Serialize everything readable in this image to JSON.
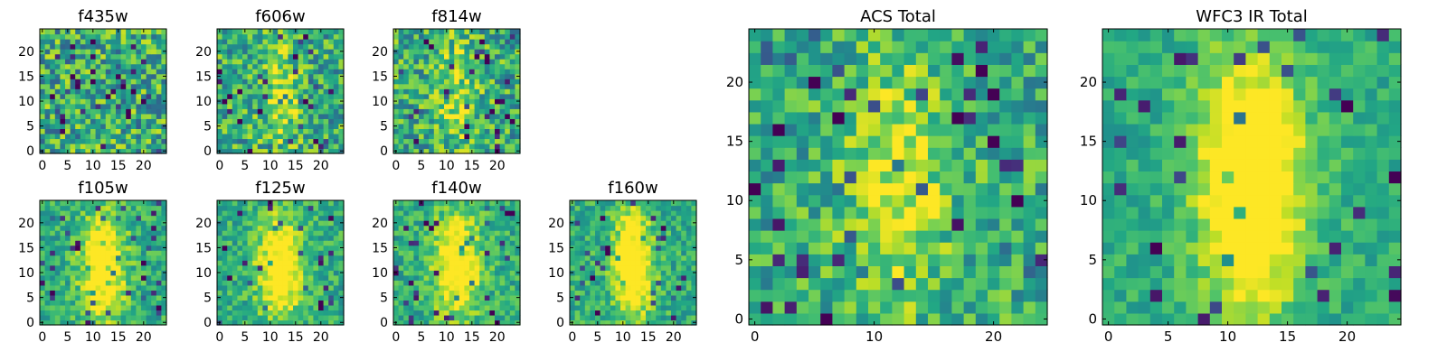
{
  "chart_data": {
    "type": "heatmap",
    "colormap": "viridis",
    "grid_size": 25,
    "panels": [
      {
        "id": "f435w",
        "title": "f435w",
        "kind": "small",
        "xticks": [
          0,
          5,
          10,
          15,
          20
        ],
        "yticks": [
          0,
          5,
          10,
          15,
          20
        ],
        "xlim": [
          -0.5,
          24.5
        ],
        "ylim": [
          -0.5,
          24.5
        ],
        "structure": "noise",
        "noise": 0.6,
        "source_strength": 0.0,
        "source_width": 3.5
      },
      {
        "id": "f606w",
        "title": "f606w",
        "kind": "small",
        "xticks": [
          0,
          5,
          10,
          15,
          20
        ],
        "yticks": [
          0,
          5,
          10,
          15,
          20
        ],
        "xlim": [
          -0.5,
          24.5
        ],
        "ylim": [
          -0.5,
          24.5
        ],
        "structure": "faint-vertical-source",
        "noise": 0.55,
        "source_strength": 0.3,
        "source_width": 2.5
      },
      {
        "id": "f814w",
        "title": "f814w",
        "kind": "small",
        "xticks": [
          0,
          5,
          10,
          15,
          20
        ],
        "yticks": [
          0,
          5,
          10,
          15,
          20
        ],
        "xlim": [
          -0.5,
          24.5
        ],
        "ylim": [
          -0.5,
          24.5
        ],
        "structure": "faint-vertical-source",
        "noise": 0.55,
        "source_strength": 0.3,
        "source_width": 2.8
      },
      {
        "id": "f105w",
        "title": "f105w",
        "kind": "small",
        "xticks": [
          0,
          5,
          10,
          15,
          20
        ],
        "yticks": [
          0,
          5,
          10,
          15,
          20
        ],
        "xlim": [
          -0.5,
          24.5
        ],
        "ylim": [
          -0.5,
          24.5
        ],
        "structure": "vertical-source",
        "noise": 0.35,
        "source_strength": 0.6,
        "source_width": 3.0
      },
      {
        "id": "f125w",
        "title": "f125w",
        "kind": "small",
        "xticks": [
          0,
          5,
          10,
          15,
          20
        ],
        "yticks": [
          0,
          5,
          10,
          15,
          20
        ],
        "xlim": [
          -0.5,
          24.5
        ],
        "ylim": [
          -0.5,
          24.5
        ],
        "structure": "vertical-source",
        "noise": 0.35,
        "source_strength": 0.55,
        "source_width": 3.2
      },
      {
        "id": "f140w",
        "title": "f140w",
        "kind": "small",
        "xticks": [
          0,
          5,
          10,
          15,
          20
        ],
        "yticks": [
          0,
          5,
          10,
          15,
          20
        ],
        "xlim": [
          -0.5,
          24.5
        ],
        "ylim": [
          -0.5,
          24.5
        ],
        "structure": "vertical-source",
        "noise": 0.35,
        "source_strength": 0.55,
        "source_width": 3.2
      },
      {
        "id": "f160w",
        "title": "f160w",
        "kind": "small",
        "xticks": [
          0,
          5,
          10,
          15,
          20
        ],
        "yticks": [
          0,
          5,
          10,
          15,
          20
        ],
        "xlim": [
          -0.5,
          24.5
        ],
        "ylim": [
          -0.5,
          24.5
        ],
        "structure": "vertical-source",
        "noise": 0.35,
        "source_strength": 0.65,
        "source_width": 2.6
      },
      {
        "id": "acs",
        "title": "ACS Total",
        "kind": "large",
        "xticks": [
          0,
          10,
          20
        ],
        "yticks": [
          0,
          5,
          10,
          15,
          20
        ],
        "xlim": [
          -0.5,
          24.5
        ],
        "ylim": [
          -0.5,
          24.5
        ],
        "structure": "faint-vertical-source",
        "noise": 0.45,
        "source_strength": 0.35,
        "source_width": 3.0
      },
      {
        "id": "wfc3",
        "title": "WFC3 IR Total",
        "kind": "large",
        "xticks": [
          0,
          5,
          10,
          15,
          20
        ],
        "yticks": [
          0,
          5,
          10,
          15,
          20
        ],
        "xlim": [
          -0.5,
          24.5
        ],
        "ylim": [
          -0.5,
          24.5
        ],
        "structure": "vertical-source",
        "noise": 0.25,
        "source_strength": 0.7,
        "source_width": 3.0
      }
    ]
  }
}
